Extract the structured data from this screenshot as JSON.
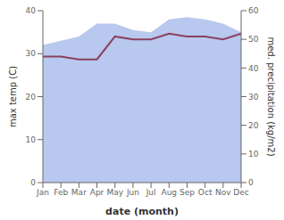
{
  "chart_data": {
    "type": "line",
    "xlabel": "date (month)",
    "ylabel": "max temp (C)",
    "y2label": "med. precipitation (kg/m2)",
    "categories": [
      "Jan",
      "Feb",
      "Mar",
      "Apr",
      "May",
      "Jun",
      "Jul",
      "Aug",
      "Sep",
      "Oct",
      "Nov",
      "Dec"
    ],
    "series": [
      {
        "type": "area",
        "color": "#b8c8ee",
        "values": [
          32,
          33,
          34,
          37,
          37,
          35.5,
          35,
          38,
          38.5,
          38,
          37,
          35
        ]
      },
      {
        "type": "line",
        "color": "#8b4060",
        "axis": "y2",
        "values": [
          44,
          44,
          43,
          43,
          51,
          50,
          50,
          52,
          51,
          51,
          50,
          52
        ]
      }
    ],
    "ylim": [
      0,
      40
    ],
    "yticks": [
      0,
      10,
      20,
      30,
      40
    ],
    "y2lim": [
      0,
      60
    ],
    "y2ticks": [
      0,
      10,
      20,
      30,
      40,
      50,
      60
    ],
    "grid": false
  }
}
